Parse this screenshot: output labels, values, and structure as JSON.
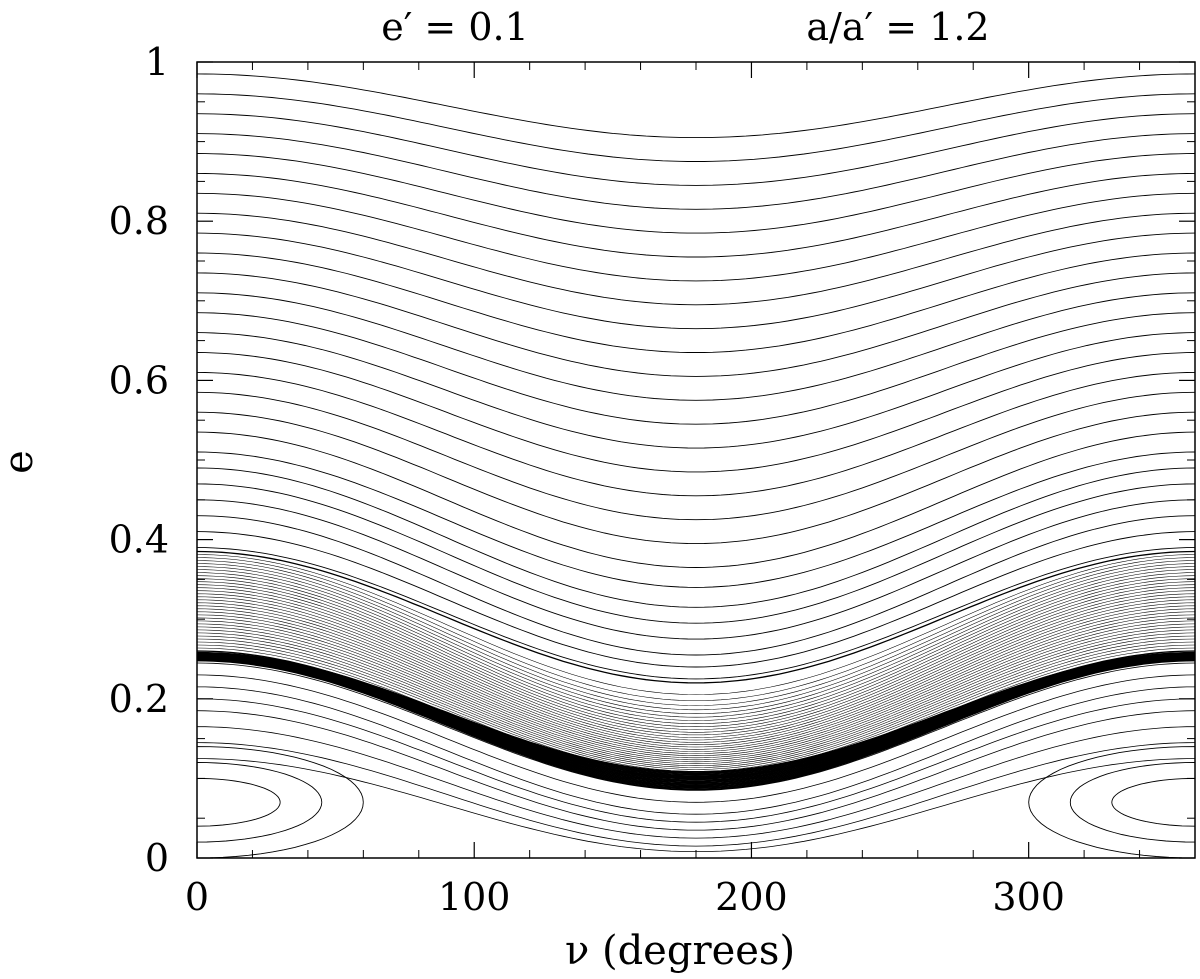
{
  "chart_data": {
    "type": "line",
    "title_left": "e′ = 0.1",
    "title_right": "a/a′ = 1.2",
    "xlabel": "ν (degrees)",
    "ylabel": "e",
    "xlim": [
      0,
      360
    ],
    "ylim": [
      0,
      1
    ],
    "xticks": [
      0,
      100,
      200,
      300
    ],
    "xtick_labels": [
      "0",
      "100",
      "200",
      "300"
    ],
    "yticks": [
      0,
      0.2,
      0.4,
      0.6,
      0.8,
      1
    ],
    "ytick_labels": [
      "0",
      "0.2",
      "0.4",
      "0.6",
      "0.8",
      "1"
    ],
    "grid": false,
    "line_color": "#000000",
    "series": [
      {
        "kind": "upper_family",
        "x": [
          0,
          90,
          180,
          270,
          360
        ],
        "e_at_0": [
          0.985,
          0.96,
          0.935,
          0.91,
          0.885,
          0.86,
          0.835,
          0.81,
          0.785,
          0.76,
          0.735,
          0.71,
          0.685,
          0.66,
          0.635,
          0.61,
          0.585,
          0.56,
          0.535,
          0.51,
          0.49,
          0.47,
          0.45,
          0.43,
          0.41,
          0.39
        ],
        "e_at_180": [
          0.905,
          0.875,
          0.845,
          0.815,
          0.785,
          0.755,
          0.725,
          0.695,
          0.665,
          0.635,
          0.605,
          0.575,
          0.545,
          0.515,
          0.485,
          0.455,
          0.425,
          0.395,
          0.365,
          0.34,
          0.315,
          0.295,
          0.275,
          0.255,
          0.24,
          0.225
        ]
      },
      {
        "kind": "separatrix_band",
        "e_at_0": [
          0.385,
          0.26
        ],
        "e_at_180": [
          0.22,
          0.1
        ]
      },
      {
        "kind": "lower_family",
        "e_at_0": [
          0.245,
          0.23,
          0.215,
          0.2,
          0.185,
          0.165,
          0.145,
          0.125
        ],
        "e_at_180": [
          0.085,
          0.07,
          0.055,
          0.045,
          0.035,
          0.025,
          0.015,
          0.008
        ]
      },
      {
        "kind": "islands",
        "centers_x": [
          0,
          360
        ],
        "center_e": 0.07,
        "half_width_deg": [
          30,
          45,
          60
        ],
        "half_height_e": [
          0.03,
          0.05,
          0.07
        ]
      }
    ]
  }
}
